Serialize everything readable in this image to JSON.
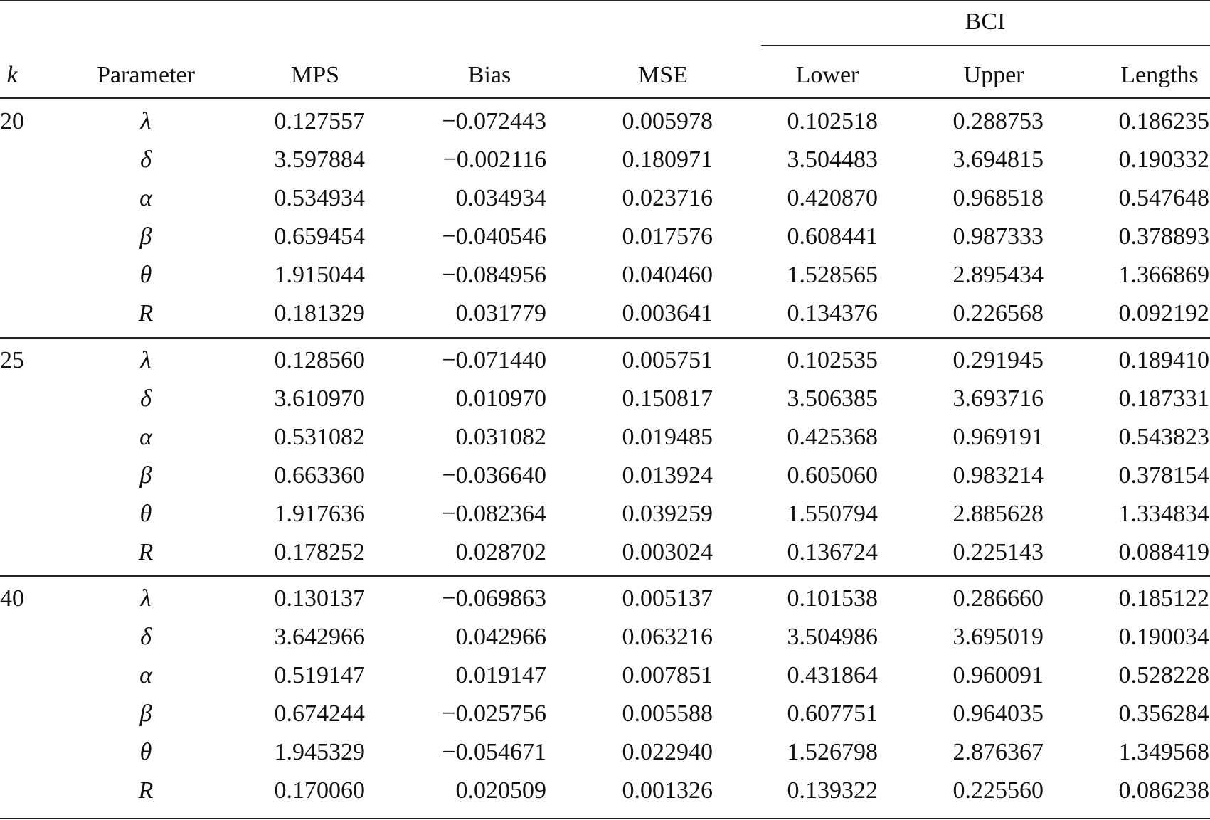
{
  "table": {
    "group_header": "BCI",
    "columns": [
      "k",
      "Parameter",
      "MPS",
      "Bias",
      "MSE",
      "Lower",
      "Upper",
      "Lengths"
    ],
    "groups": [
      {
        "k": "20",
        "rows": [
          {
            "param": "λ",
            "mps": "0.127557",
            "bias": "−0.072443",
            "mse": "0.005978",
            "lower": "0.102518",
            "upper": "0.288753",
            "length": "0.186235"
          },
          {
            "param": "δ",
            "mps": "3.597884",
            "bias": "−0.002116",
            "mse": "0.180971",
            "lower": "3.504483",
            "upper": "3.694815",
            "length": "0.190332"
          },
          {
            "param": "α",
            "mps": "0.534934",
            "bias": "0.034934",
            "mse": "0.023716",
            "lower": "0.420870",
            "upper": "0.968518",
            "length": "0.547648"
          },
          {
            "param": "β",
            "mps": "0.659454",
            "bias": "−0.040546",
            "mse": "0.017576",
            "lower": "0.608441",
            "upper": "0.987333",
            "length": "0.378893"
          },
          {
            "param": "θ",
            "mps": "1.915044",
            "bias": "−0.084956",
            "mse": "0.040460",
            "lower": "1.528565",
            "upper": "2.895434",
            "length": "1.366869"
          },
          {
            "param": "R",
            "mps": "0.181329",
            "bias": "0.031779",
            "mse": "0.003641",
            "lower": "0.134376",
            "upper": "0.226568",
            "length": "0.092192"
          }
        ]
      },
      {
        "k": "25",
        "rows": [
          {
            "param": "λ",
            "mps": "0.128560",
            "bias": "−0.071440",
            "mse": "0.005751",
            "lower": "0.102535",
            "upper": "0.291945",
            "length": "0.189410"
          },
          {
            "param": "δ",
            "mps": "3.610970",
            "bias": "0.010970",
            "mse": "0.150817",
            "lower": "3.506385",
            "upper": "3.693716",
            "length": "0.187331"
          },
          {
            "param": "α",
            "mps": "0.531082",
            "bias": "0.031082",
            "mse": "0.019485",
            "lower": "0.425368",
            "upper": "0.969191",
            "length": "0.543823"
          },
          {
            "param": "β",
            "mps": "0.663360",
            "bias": "−0.036640",
            "mse": "0.013924",
            "lower": "0.605060",
            "upper": "0.983214",
            "length": "0.378154"
          },
          {
            "param": "θ",
            "mps": "1.917636",
            "bias": "−0.082364",
            "mse": "0.039259",
            "lower": "1.550794",
            "upper": "2.885628",
            "length": "1.334834"
          },
          {
            "param": "R",
            "mps": "0.178252",
            "bias": "0.028702",
            "mse": "0.003024",
            "lower": "0.136724",
            "upper": "0.225143",
            "length": "0.088419"
          }
        ]
      },
      {
        "k": "40",
        "rows": [
          {
            "param": "λ",
            "mps": "0.130137",
            "bias": "−0.069863",
            "mse": "0.005137",
            "lower": "0.101538",
            "upper": "0.286660",
            "length": "0.185122"
          },
          {
            "param": "δ",
            "mps": "3.642966",
            "bias": "0.042966",
            "mse": "0.063216",
            "lower": "3.504986",
            "upper": "3.695019",
            "length": "0.190034"
          },
          {
            "param": "α",
            "mps": "0.519147",
            "bias": "0.019147",
            "mse": "0.007851",
            "lower": "0.431864",
            "upper": "0.960091",
            "length": "0.528228"
          },
          {
            "param": "β",
            "mps": "0.674244",
            "bias": "−0.025756",
            "mse": "0.005588",
            "lower": "0.607751",
            "upper": "0.964035",
            "length": "0.356284"
          },
          {
            "param": "θ",
            "mps": "1.945329",
            "bias": "−0.054671",
            "mse": "0.022940",
            "lower": "1.526798",
            "upper": "2.876367",
            "length": "1.349568"
          },
          {
            "param": "R",
            "mps": "0.170060",
            "bias": "0.020509",
            "mse": "0.001326",
            "lower": "0.139322",
            "upper": "0.225560",
            "length": "0.086238"
          }
        ]
      }
    ]
  }
}
